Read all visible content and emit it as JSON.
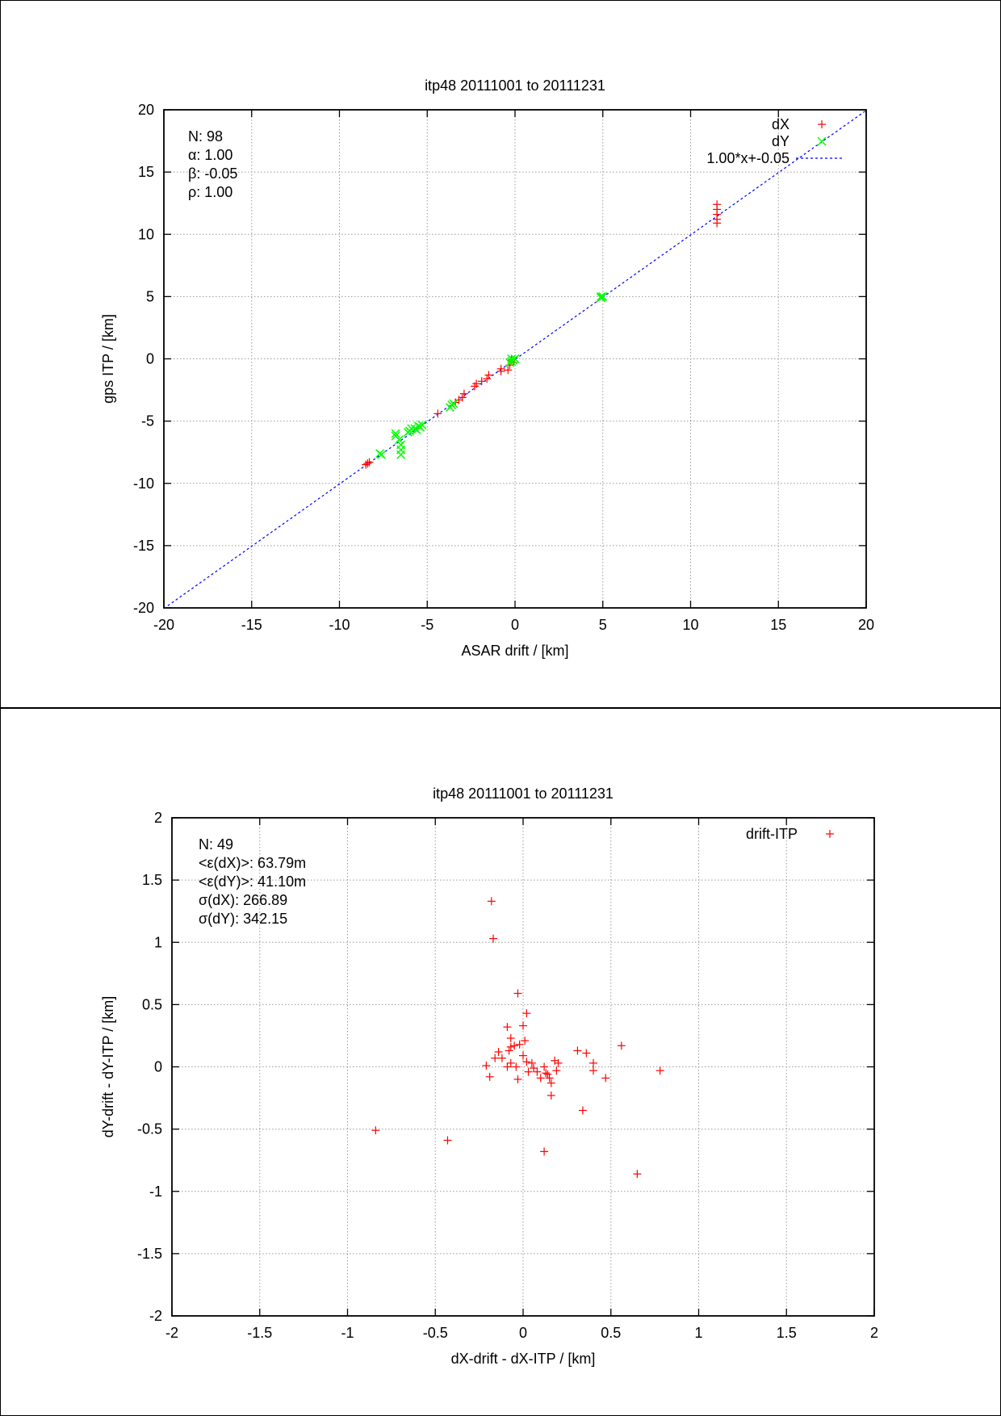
{
  "chart_data": [
    {
      "type": "scatter",
      "title": "itp48 20111001 to 20111231",
      "xlabel": "ASAR drift / [km]",
      "ylabel": "gps ITP / [km]",
      "xlim": [
        -20,
        20
      ],
      "ylim": [
        -20,
        20
      ],
      "xticks": [
        "-20",
        "-15",
        "-10",
        "-5",
        "0",
        "5",
        "10",
        "15",
        "20"
      ],
      "yticks": [
        "-20",
        "-15",
        "-10",
        "-5",
        "0",
        "5",
        "10",
        "15",
        "20"
      ],
      "xtick_values": [
        -20,
        -15,
        -10,
        -5,
        0,
        5,
        10,
        15,
        20
      ],
      "ytick_values": [
        -20,
        -15,
        -10,
        -5,
        0,
        5,
        10,
        15,
        20
      ],
      "grid": true,
      "legend_position": "top-right",
      "stats": [
        "N: 98",
        "α: 1.00",
        "β: -0.05",
        "ρ: 1.00"
      ],
      "series": [
        {
          "name": "dX",
          "marker": "plus",
          "color": "#ff0000",
          "points": [
            [
              11.5,
              12.4
            ],
            [
              11.5,
              12.0
            ],
            [
              11.5,
              11.6
            ],
            [
              11.5,
              11.2
            ],
            [
              11.5,
              10.9
            ],
            [
              -0.2,
              -0.1
            ],
            [
              -0.3,
              -0.5
            ],
            [
              -0.4,
              -0.9
            ],
            [
              -0.8,
              -0.8
            ],
            [
              -0.8,
              -1.0
            ],
            [
              -1.5,
              -1.3
            ],
            [
              -1.6,
              -1.6
            ],
            [
              -1.9,
              -1.8
            ],
            [
              -2.2,
              -2.0
            ],
            [
              -2.3,
              -2.2
            ],
            [
              -2.9,
              -2.8
            ],
            [
              -3.0,
              -3.1
            ],
            [
              -3.2,
              -3.3
            ],
            [
              -3.4,
              -3.5
            ],
            [
              -4.4,
              -4.4
            ],
            [
              -8.4,
              -8.4
            ],
            [
              -8.5,
              -8.5
            ],
            [
              -8.3,
              -8.3
            ],
            [
              -0.1,
              -0.3
            ]
          ]
        },
        {
          "name": "dY",
          "marker": "cross",
          "color": "#00ff00",
          "points": [
            [
              4.9,
              5.0
            ],
            [
              4.9,
              4.9
            ],
            [
              5.0,
              5.0
            ],
            [
              -0.2,
              -0.2
            ],
            [
              -0.1,
              -0.1
            ],
            [
              -0.3,
              -0.3
            ],
            [
              0.0,
              0.0
            ],
            [
              -0.2,
              0.0
            ],
            [
              -3.6,
              -3.7
            ],
            [
              -3.7,
              -3.9
            ],
            [
              -3.5,
              -3.6
            ],
            [
              -5.3,
              -5.3
            ],
            [
              -5.4,
              -5.5
            ],
            [
              -5.6,
              -5.7
            ],
            [
              -5.5,
              -5.4
            ],
            [
              -5.7,
              -5.6
            ],
            [
              -6.0,
              -5.8
            ],
            [
              -6.1,
              -5.9
            ],
            [
              -5.9,
              -5.6
            ],
            [
              -6.8,
              -6.0
            ],
            [
              -6.8,
              -6.2
            ],
            [
              -6.6,
              -6.5
            ],
            [
              -6.5,
              -6.9
            ],
            [
              -6.5,
              -7.3
            ],
            [
              -6.5,
              -7.7
            ],
            [
              -7.7,
              -7.6
            ],
            [
              -7.6,
              -7.7
            ]
          ]
        },
        {
          "name": "1.00*x+-0.05",
          "type": "line",
          "color": "#0000ff",
          "style": "dashed",
          "slope": 1.0,
          "intercept": -0.05
        }
      ]
    },
    {
      "type": "scatter",
      "title": "itp48 20111001 to 20111231",
      "xlabel": "dX-drift - dX-ITP / [km]",
      "ylabel": "dY-drift - dY-ITP / [km]",
      "xlim": [
        -2,
        2
      ],
      "ylim": [
        -2,
        2
      ],
      "xticks": [
        "-2",
        "-1.5",
        "-1",
        "-0.5",
        "0",
        "0.5",
        "1",
        "1.5",
        "2"
      ],
      "yticks": [
        "-2",
        "-1.5",
        "-1",
        "-0.5",
        "0",
        "0.5",
        "1",
        "1.5",
        "2"
      ],
      "xtick_values": [
        -2,
        -1.5,
        -1,
        -0.5,
        0,
        0.5,
        1,
        1.5,
        2
      ],
      "ytick_values": [
        -2,
        -1.5,
        -1,
        -0.5,
        0,
        0.5,
        1,
        1.5,
        2
      ],
      "grid": true,
      "legend_position": "top-right",
      "stats": [
        "N: 49",
        "<ε(dX)>:  63.79m",
        "<ε(dY)>: 41.10m",
        "σ(dX):  266.89",
        "σ(dY):  342.15"
      ],
      "series": [
        {
          "name": "drift-ITP",
          "marker": "plus",
          "color": "#ff0000",
          "points": [
            [
              -0.18,
              1.33
            ],
            [
              -0.17,
              1.03
            ],
            [
              -0.03,
              0.59
            ],
            [
              0.02,
              0.43
            ],
            [
              0.0,
              0.33
            ],
            [
              -0.09,
              0.32
            ],
            [
              -0.07,
              0.23
            ],
            [
              0.01,
              0.21
            ],
            [
              -0.07,
              0.16
            ],
            [
              -0.08,
              0.13
            ],
            [
              -0.05,
              0.17
            ],
            [
              -0.02,
              0.18
            ],
            [
              -0.14,
              0.12
            ],
            [
              -0.16,
              0.07
            ],
            [
              -0.12,
              0.07
            ],
            [
              -0.21,
              0.01
            ],
            [
              -0.19,
              -0.08
            ],
            [
              -0.09,
              0.0
            ],
            [
              -0.07,
              0.03
            ],
            [
              -0.03,
              -0.1
            ],
            [
              0.0,
              0.09
            ],
            [
              0.02,
              0.04
            ],
            [
              0.05,
              0.03
            ],
            [
              0.03,
              -0.04
            ],
            [
              0.08,
              -0.04
            ],
            [
              0.1,
              -0.09
            ],
            [
              0.12,
              0.0
            ],
            [
              0.13,
              -0.05
            ],
            [
              0.15,
              -0.09
            ],
            [
              0.16,
              -0.13
            ],
            [
              0.16,
              -0.23
            ],
            [
              0.18,
              0.05
            ],
            [
              0.2,
              0.03
            ],
            [
              0.19,
              -0.03
            ],
            [
              0.12,
              -0.68
            ],
            [
              0.31,
              0.13
            ],
            [
              0.36,
              0.11
            ],
            [
              0.4,
              0.03
            ],
            [
              0.4,
              -0.03
            ],
            [
              0.47,
              -0.09
            ],
            [
              0.34,
              -0.35
            ],
            [
              0.56,
              0.17
            ],
            [
              0.65,
              -0.86
            ],
            [
              0.78,
              -0.03
            ],
            [
              -0.43,
              -0.59
            ],
            [
              -0.84,
              -0.51
            ],
            [
              0.14,
              -0.06
            ],
            [
              -0.04,
              0.0
            ],
            [
              0.06,
              -0.01
            ]
          ]
        }
      ]
    }
  ]
}
